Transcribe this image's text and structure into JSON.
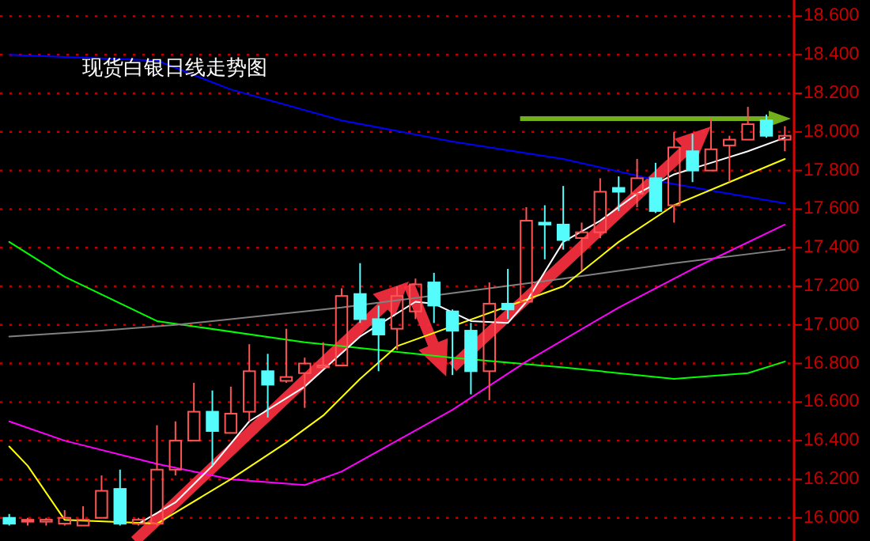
{
  "chart_data": {
    "type": "candlestick",
    "title": "现货白银日线走势图",
    "categories": [
      null,
      null,
      null,
      null,
      null,
      null,
      null,
      null,
      null,
      null,
      null,
      null,
      null,
      null,
      null,
      null,
      null,
      null,
      null,
      null,
      null,
      null,
      null,
      null,
      null,
      null,
      null,
      null,
      null,
      null,
      null,
      null,
      null,
      null,
      null,
      null,
      null,
      null,
      null,
      null,
      null,
      null,
      null
    ],
    "ohlc": [
      [
        16.0,
        16.02,
        15.96,
        15.97
      ],
      [
        15.99,
        16.0,
        15.96,
        15.98
      ],
      [
        15.98,
        16.0,
        15.96,
        15.99
      ],
      [
        15.97,
        16.04,
        15.96,
        16.0
      ],
      [
        15.96,
        16.06,
        15.96,
        15.99
      ],
      [
        16.0,
        16.22,
        16.0,
        16.14
      ],
      [
        16.15,
        16.25,
        15.96,
        15.97
      ],
      [
        15.97,
        16.0,
        15.96,
        15.99
      ],
      [
        15.97,
        16.48,
        15.96,
        16.25
      ],
      [
        16.25,
        16.5,
        16.22,
        16.4
      ],
      [
        16.4,
        16.7,
        16.4,
        16.55
      ],
      [
        16.55,
        16.66,
        16.27,
        16.45
      ],
      [
        16.44,
        16.68,
        16.44,
        16.54
      ],
      [
        16.55,
        16.9,
        16.5,
        16.76
      ],
      [
        16.76,
        16.85,
        16.52,
        16.69
      ],
      [
        16.71,
        16.98,
        16.7,
        16.73
      ],
      [
        16.75,
        16.83,
        16.57,
        16.8
      ],
      [
        16.78,
        16.91,
        16.78,
        16.79
      ],
      [
        16.79,
        17.19,
        16.79,
        17.15
      ],
      [
        17.16,
        17.32,
        17.01,
        17.03
      ],
      [
        17.03,
        17.1,
        16.76,
        16.95
      ],
      [
        16.98,
        17.2,
        16.87,
        17.15
      ],
      [
        17.07,
        17.24,
        17.03,
        17.21
      ],
      [
        17.22,
        17.27,
        17.01,
        17.1
      ],
      [
        17.07,
        17.08,
        16.74,
        16.97
      ],
      [
        16.97,
        17.01,
        16.64,
        16.76
      ],
      [
        16.76,
        17.22,
        16.61,
        17.11
      ],
      [
        17.11,
        17.29,
        17.03,
        17.08
      ],
      [
        17.12,
        17.61,
        17.12,
        17.54
      ],
      [
        17.53,
        17.62,
        17.34,
        17.52
      ],
      [
        17.52,
        17.72,
        17.39,
        17.44
      ],
      [
        17.45,
        17.53,
        17.28,
        17.48
      ],
      [
        17.48,
        17.76,
        17.45,
        17.69
      ],
      [
        17.71,
        17.77,
        17.59,
        17.69
      ],
      [
        17.68,
        17.86,
        17.61,
        17.76
      ],
      [
        17.76,
        17.84,
        17.58,
        17.59
      ],
      [
        17.62,
        18.0,
        17.53,
        17.92
      ],
      [
        17.9,
        17.99,
        17.74,
        17.8
      ],
      [
        17.8,
        18.07,
        17.8,
        17.91
      ],
      [
        17.93,
        17.98,
        17.74,
        17.96
      ],
      [
        17.96,
        18.13,
        17.96,
        18.04
      ],
      [
        18.06,
        18.09,
        17.97,
        17.98
      ],
      [
        17.96,
        18.03,
        17.9,
        17.98
      ]
    ],
    "colors": [
      "#54fcfc",
      "#ff5454",
      "#ff5454",
      "#ff5454",
      "#ff5454",
      "#ff5454",
      "#54fcfc",
      "#ff5454",
      "#ff5454",
      "#ff5454",
      "#ff5454",
      "#54fcfc",
      "#ff5454",
      "#ff5454",
      "#54fcfc",
      "#ff5454",
      "#ff5454",
      "#ff5454",
      "#ff5454",
      "#54fcfc",
      "#54fcfc",
      "#ff5454",
      "#ff5454",
      "#54fcfc",
      "#54fcfc",
      "#54fcfc",
      "#ff5454",
      "#54fcfc",
      "#ff5454",
      "#54fcfc",
      "#54fcfc",
      "#ff5454",
      "#ff5454",
      "#54fcfc",
      "#ff5454",
      "#54fcfc",
      "#ff5454",
      "#54fcfc",
      "#ff5454",
      "#ff5454",
      "#ff5454",
      "#54fcfc",
      "#ff5454"
    ],
    "series": [
      {
        "type": "line",
        "color": "#0000ff",
        "values": [
          18.4,
          null,
          null,
          null,
          null,
          null,
          null,
          null,
          18.37,
          null,
          null,
          null,
          18.22,
          null,
          null,
          null,
          null,
          null,
          18.06,
          null,
          null,
          null,
          null,
          null,
          17.95,
          null,
          null,
          null,
          null,
          null,
          17.86,
          null,
          null,
          null,
          null,
          null,
          17.73,
          null,
          null,
          null,
          null,
          null,
          17.63
        ]
      },
      {
        "type": "line",
        "color": "#00ff00",
        "values": [
          17.43,
          null,
          null,
          17.25,
          null,
          null,
          null,
          null,
          17.02,
          null,
          null,
          null,
          null,
          null,
          null,
          null,
          16.91,
          null,
          null,
          null,
          null,
          null,
          null,
          null,
          16.83,
          null,
          null,
          null,
          null,
          null,
          16.78,
          null,
          null,
          null,
          null,
          null,
          16.72,
          null,
          null,
          null,
          16.75,
          null,
          16.81
        ]
      },
      {
        "type": "line",
        "color": "#808080",
        "values": [
          16.94,
          null,
          null,
          null,
          null,
          16.97,
          null,
          null,
          null,
          17.0,
          null,
          null,
          null,
          null,
          null,
          null,
          null,
          null,
          17.09,
          null,
          null,
          null,
          null,
          null,
          null,
          null,
          null,
          null,
          null,
          null,
          17.24,
          null,
          null,
          null,
          null,
          null,
          17.32,
          null,
          null,
          null,
          null,
          null,
          17.39
        ]
      },
      {
        "type": "line",
        "color": "#ff00ff",
        "values": [
          16.5,
          null,
          null,
          16.4,
          null,
          null,
          null,
          null,
          16.28,
          null,
          null,
          null,
          16.2,
          null,
          null,
          null,
          16.17,
          null,
          16.24,
          null,
          null,
          16.4,
          null,
          null,
          16.56,
          null,
          null,
          null,
          16.81,
          null,
          null,
          null,
          null,
          17.09,
          null,
          null,
          null,
          17.29,
          null,
          null,
          null,
          null,
          17.52
        ]
      },
      {
        "type": "line",
        "color": "#ffff00",
        "values": [
          16.37,
          16.27,
          null,
          15.99,
          null,
          null,
          null,
          null,
          15.97,
          null,
          null,
          null,
          16.2,
          null,
          null,
          16.39,
          null,
          16.53,
          null,
          16.72,
          null,
          16.89,
          null,
          null,
          null,
          null,
          null,
          null,
          null,
          null,
          17.2,
          null,
          null,
          17.43,
          null,
          null,
          17.62,
          null,
          null,
          17.74,
          null,
          null,
          17.86
        ]
      },
      {
        "type": "line",
        "color": "#ffffff",
        "values": [
          null,
          null,
          null,
          null,
          null,
          null,
          null,
          15.97,
          null,
          16.08,
          null,
          16.27,
          null,
          16.5,
          null,
          null,
          16.68,
          null,
          null,
          16.94,
          null,
          null,
          17.12,
          17.11,
          null,
          17.02,
          null,
          17.01,
          17.12,
          null,
          17.43,
          null,
          17.54,
          null,
          17.68,
          null,
          17.78,
          null,
          17.84,
          null,
          17.9,
          null,
          17.97
        ]
      }
    ],
    "ylim": [
      15.88,
      18.61
    ],
    "yticks": [
      {
        "value": 16.0,
        "label": "16.000"
      },
      {
        "value": 16.2,
        "label": "16.200"
      },
      {
        "value": 16.4,
        "label": "16.400"
      },
      {
        "value": 16.6,
        "label": "16.600"
      },
      {
        "value": 16.8,
        "label": "16.800"
      },
      {
        "value": 17.0,
        "label": "17.000"
      },
      {
        "value": 17.2,
        "label": "17.200"
      },
      {
        "value": 17.4,
        "label": "17.400"
      },
      {
        "value": 17.6,
        "label": "17.600"
      },
      {
        "value": 17.8,
        "label": "17.800"
      },
      {
        "value": 18.0,
        "label": "18.000"
      },
      {
        "value": 18.2,
        "label": "18.200"
      },
      {
        "value": 18.4,
        "label": "18.400"
      },
      {
        "value": 18.6,
        "label": "18.600"
      }
    ],
    "grid": "y"
  }
}
